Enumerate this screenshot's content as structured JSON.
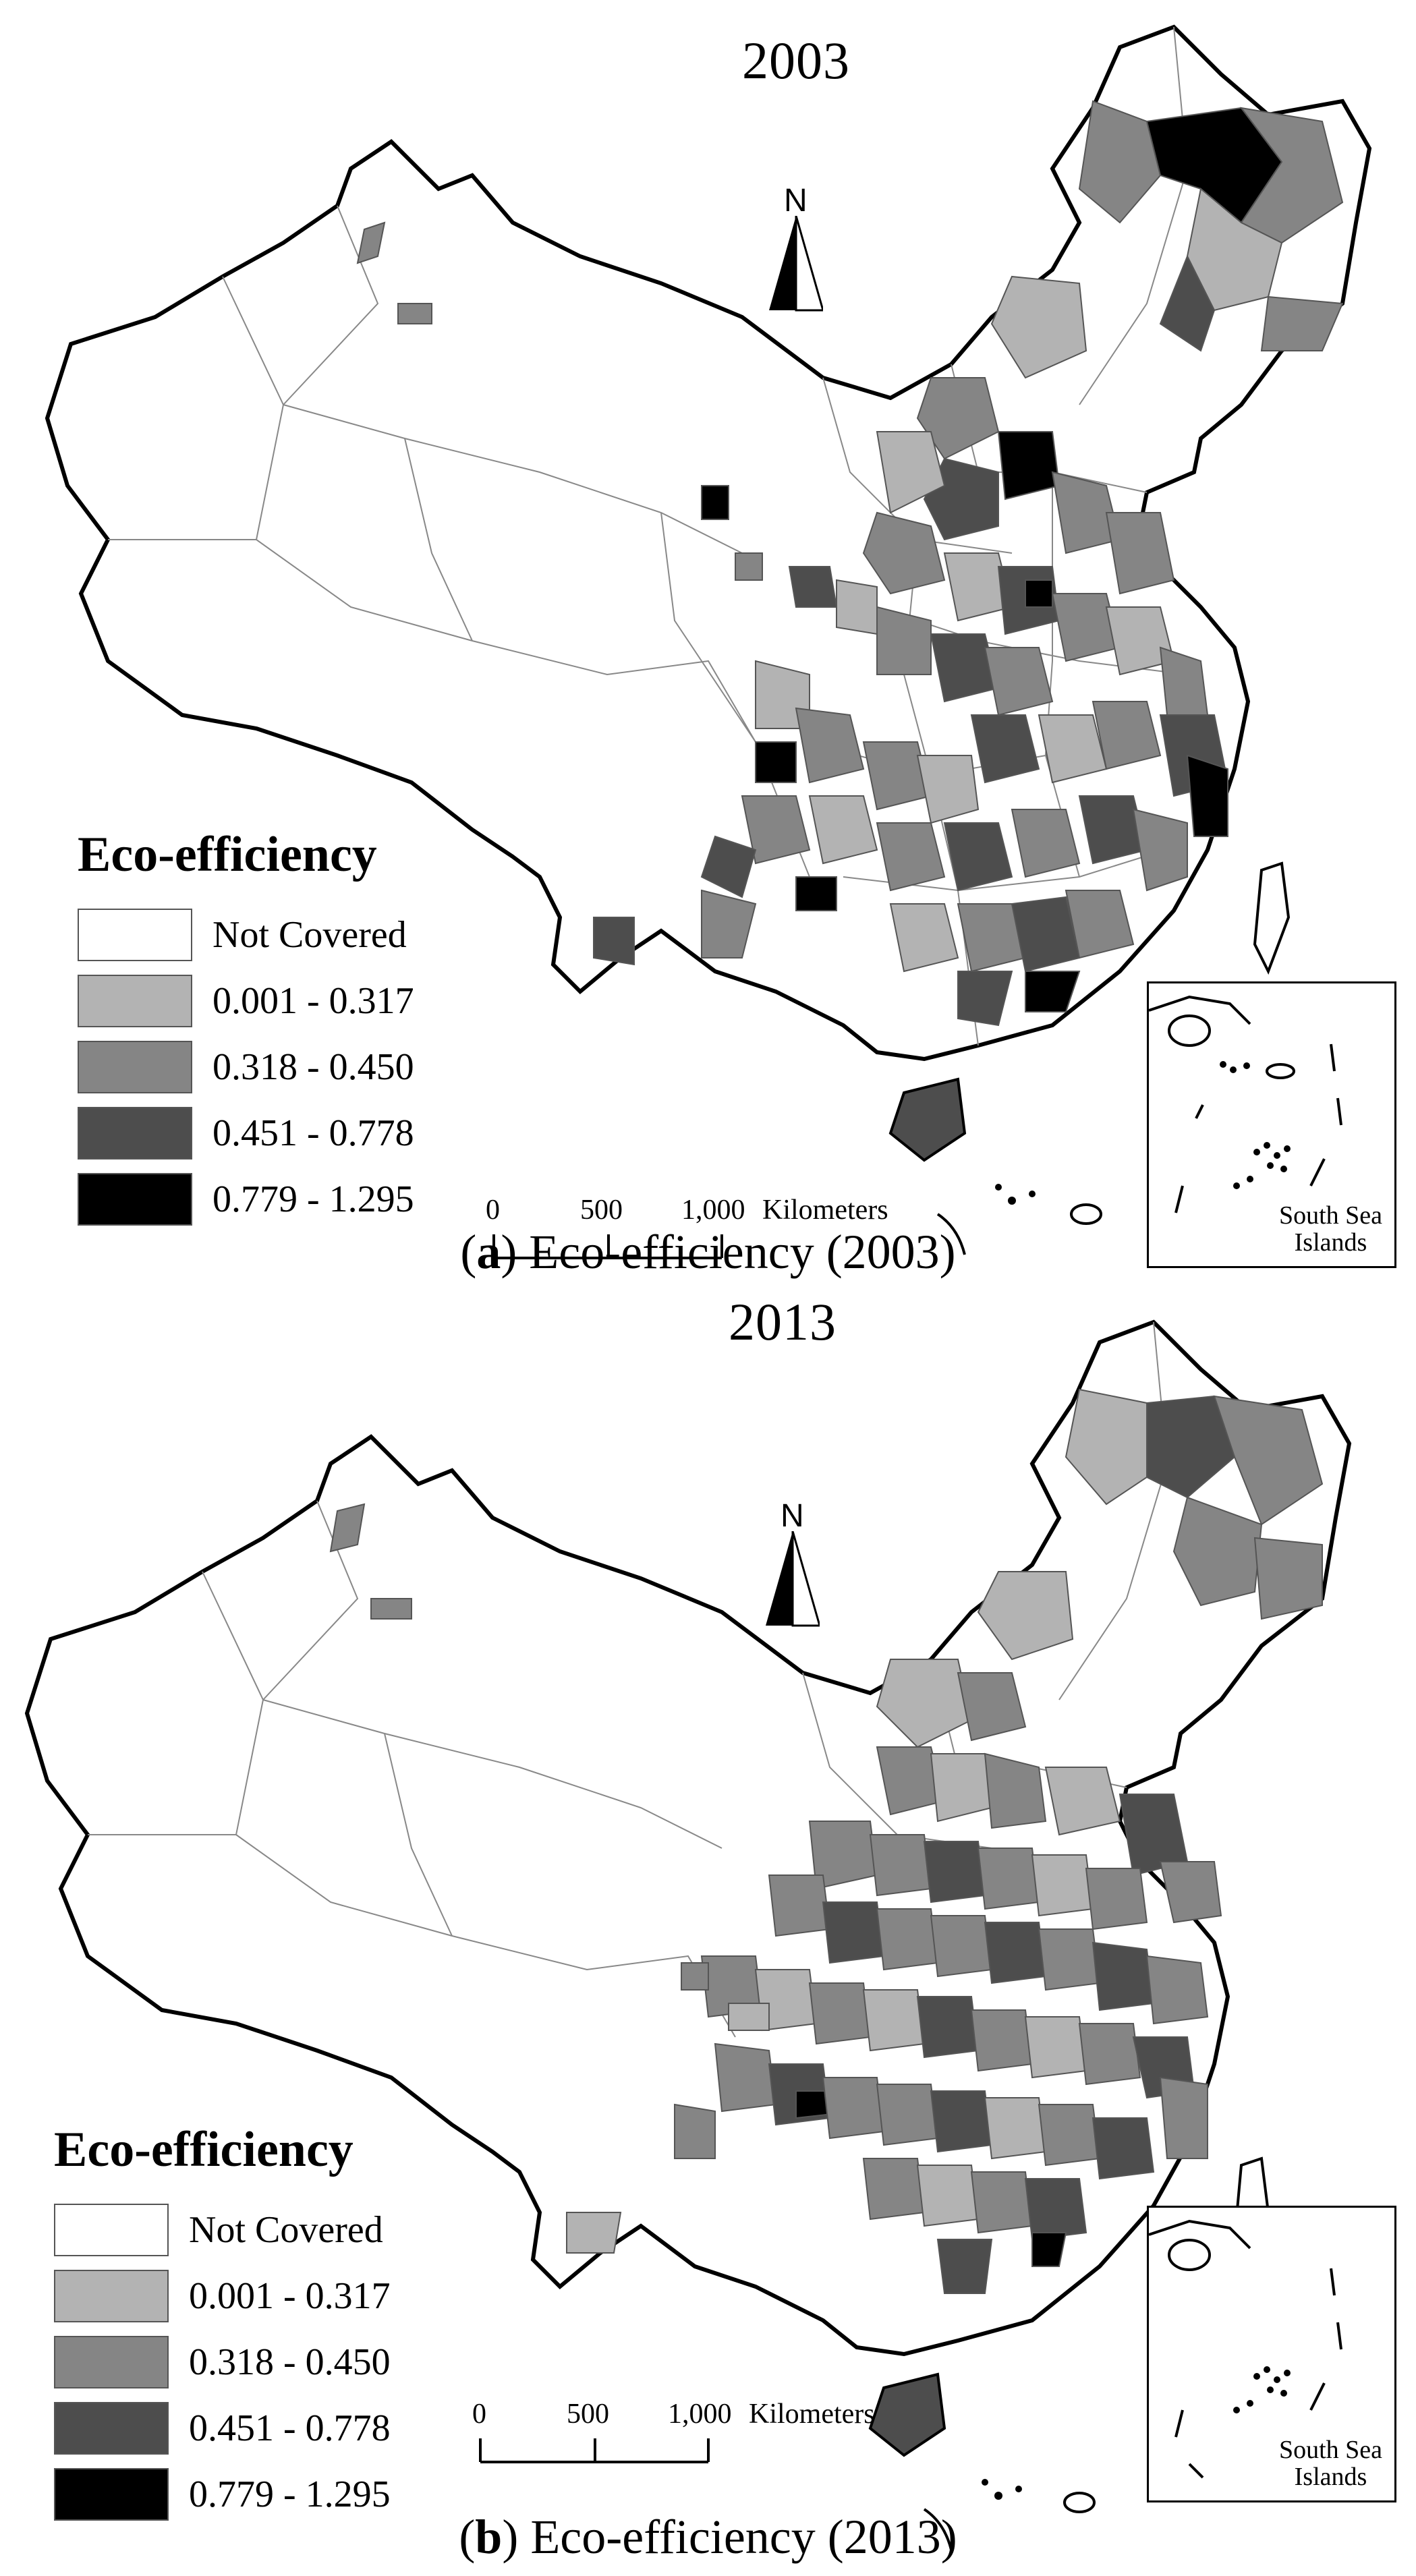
{
  "panels": [
    {
      "year": "2003",
      "caption_letter": "a",
      "caption_text": "Eco-efficiency (2003)"
    },
    {
      "year": "2013",
      "caption_letter": "b",
      "caption_text": "Eco-efficiency (2013)"
    }
  ],
  "legend": {
    "title": "Eco-efficiency",
    "items": [
      {
        "label": "Not Covered",
        "color": "#ffffff"
      },
      {
        "label": "0.001 - 0.317",
        "color": "#b3b3b3"
      },
      {
        "label": "0.318 - 0.450",
        "color": "#858585"
      },
      {
        "label": "0.451 - 0.778",
        "color": "#4d4d4d"
      },
      {
        "label": "0.779 - 1.295",
        "color": "#000000"
      }
    ]
  },
  "north_arrow": {
    "label": "N"
  },
  "scale_bar": {
    "ticks": [
      "0",
      "500",
      "1,000"
    ],
    "unit": "Kilometers"
  },
  "inset": {
    "line1": "South Sea",
    "line2": "Islands"
  }
}
